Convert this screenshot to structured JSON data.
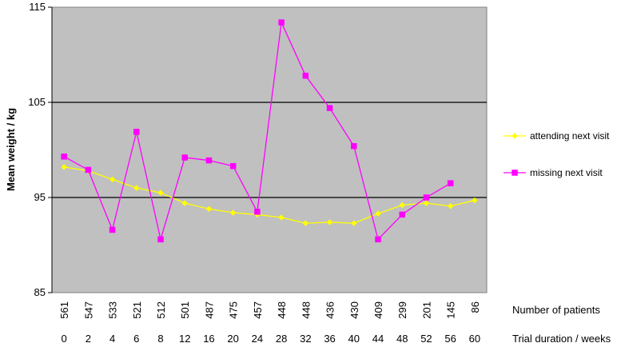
{
  "chart_data": {
    "type": "line",
    "title": "",
    "ylabel": "Mean weight / kg",
    "ylim": [
      85,
      115
    ],
    "yticks": [
      85,
      95,
      105,
      115
    ],
    "grid": "horizontal major lines",
    "legend_position": "right",
    "categories": [
      "0",
      "2",
      "4",
      "6",
      "8",
      "12",
      "16",
      "20",
      "24",
      "28",
      "32",
      "36",
      "40",
      "44",
      "48",
      "52",
      "56",
      "60"
    ],
    "patient_counts": [
      "561",
      "547",
      "533",
      "521",
      "512",
      "501",
      "487",
      "475",
      "457",
      "448",
      "448",
      "436",
      "430",
      "409",
      "299",
      "201",
      "145",
      "86"
    ],
    "row_labels": {
      "patients": "Number of patients",
      "duration": "Trial duration / weeks"
    },
    "series": [
      {
        "name": "attending next visit",
        "color": "#ffff00",
        "marker": "diamond",
        "values": [
          98.2,
          97.8,
          96.9,
          96.0,
          95.5,
          94.4,
          93.8,
          93.4,
          93.2,
          92.9,
          92.3,
          92.4,
          92.3,
          93.3,
          94.2,
          94.4,
          94.1,
          94.7
        ]
      },
      {
        "name": "missing next visit",
        "color": "#ff00ff",
        "marker": "square",
        "values": [
          99.3,
          97.9,
          91.6,
          101.9,
          90.6,
          99.2,
          98.9,
          98.3,
          93.5,
          113.4,
          107.8,
          104.4,
          100.4,
          90.6,
          93.2,
          95.0,
          96.5,
          null
        ]
      }
    ]
  }
}
